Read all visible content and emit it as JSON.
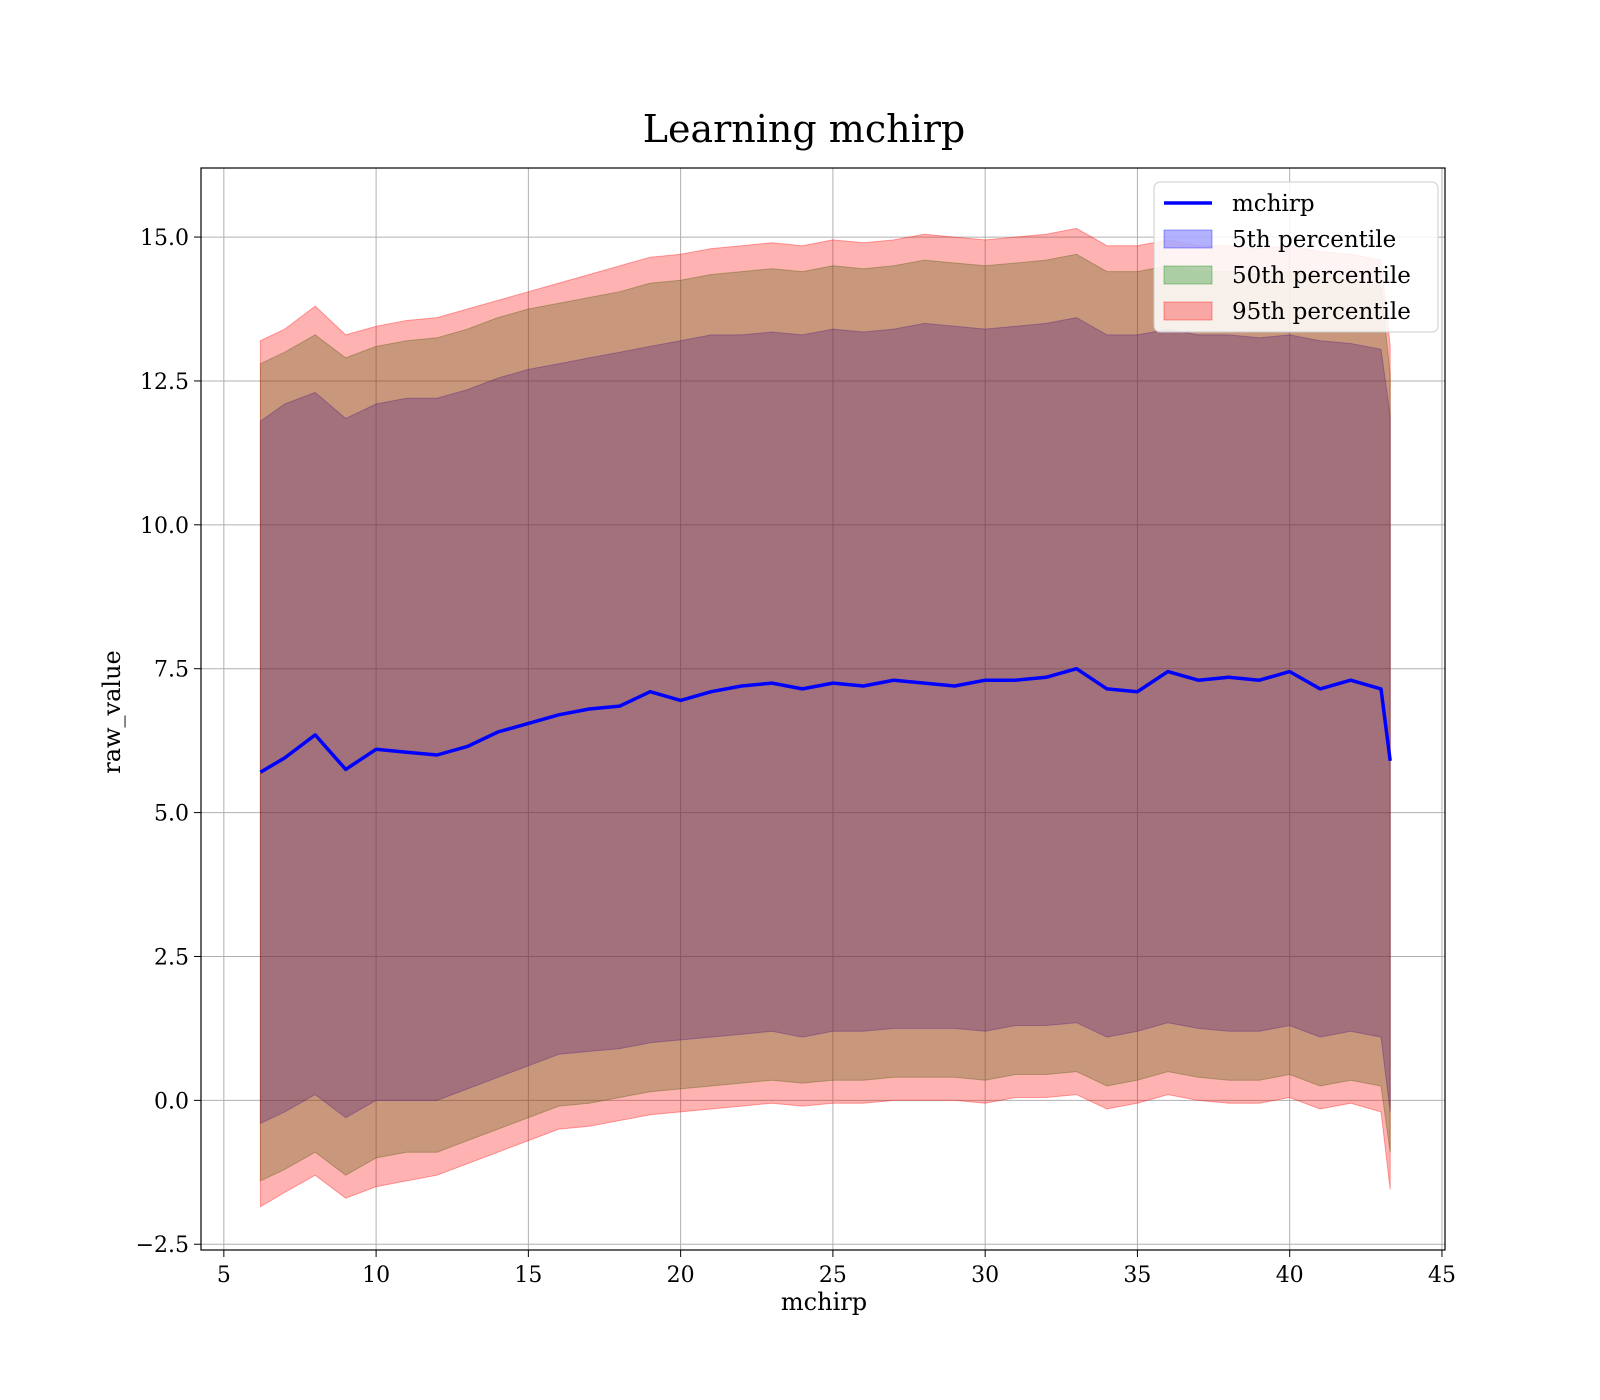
{
  "chart_data": {
    "type": "line",
    "title": "Learning mchirp",
    "xlabel": "mchirp",
    "ylabel": "raw_value",
    "xlim": [
      4.25,
      45.1
    ],
    "ylim": [
      -2.6,
      16.2
    ],
    "xticks": [
      5,
      10,
      15,
      20,
      25,
      30,
      35,
      40,
      45
    ],
    "yticks": [
      -2.5,
      0.0,
      2.5,
      5.0,
      7.5,
      10.0,
      12.5,
      15.0
    ],
    "xtick_labels": [
      "5",
      "10",
      "15",
      "20",
      "25",
      "30",
      "35",
      "40",
      "45"
    ],
    "ytick_labels": [
      "−2.5",
      "0.0",
      "2.5",
      "5.0",
      "7.5",
      "10.0",
      "12.5",
      "15.0"
    ],
    "grid": true,
    "legend_position": "top-right",
    "x": [
      6.2,
      7.0,
      8.0,
      9.0,
      10.0,
      11.0,
      12.0,
      13.0,
      14.0,
      15.0,
      16.0,
      17.0,
      18.0,
      19.0,
      20.0,
      21.0,
      22.0,
      23.0,
      24.0,
      25.0,
      26.0,
      27.0,
      28.0,
      29.0,
      30.0,
      31.0,
      32.0,
      33.0,
      34.0,
      35.0,
      36.0,
      37.0,
      38.0,
      39.0,
      40.0,
      41.0,
      42.0,
      43.0,
      43.3
    ],
    "series": [
      {
        "name": "mchirp",
        "kind": "line",
        "color": "#0000ff",
        "values": [
          5.7,
          5.95,
          6.35,
          5.75,
          6.1,
          6.05,
          6.0,
          6.15,
          6.4,
          6.55,
          6.7,
          6.8,
          6.85,
          7.1,
          6.95,
          7.1,
          7.2,
          7.25,
          7.15,
          7.25,
          7.2,
          7.3,
          7.25,
          7.2,
          7.3,
          7.3,
          7.35,
          7.5,
          7.15,
          7.1,
          7.45,
          7.3,
          7.35,
          7.3,
          7.45,
          7.15,
          7.3,
          7.15,
          5.9
        ]
      },
      {
        "name": "5th percentile",
        "kind": "band",
        "color": "#0000ff",
        "lower": [
          -0.4,
          -0.2,
          0.1,
          -0.3,
          0.0,
          0.0,
          0.0,
          0.2,
          0.4,
          0.6,
          0.8,
          0.85,
          0.9,
          1.0,
          1.05,
          1.1,
          1.15,
          1.2,
          1.1,
          1.2,
          1.2,
          1.25,
          1.25,
          1.25,
          1.2,
          1.3,
          1.3,
          1.35,
          1.1,
          1.2,
          1.35,
          1.25,
          1.2,
          1.2,
          1.3,
          1.1,
          1.2,
          1.1,
          -0.2
        ],
        "upper": [
          11.8,
          12.1,
          12.3,
          11.85,
          12.1,
          12.2,
          12.2,
          12.35,
          12.55,
          12.7,
          12.8,
          12.9,
          13.0,
          13.1,
          13.2,
          13.3,
          13.3,
          13.35,
          13.3,
          13.4,
          13.35,
          13.4,
          13.5,
          13.45,
          13.4,
          13.45,
          13.5,
          13.6,
          13.3,
          13.3,
          13.4,
          13.3,
          13.3,
          13.25,
          13.3,
          13.2,
          13.15,
          13.05,
          11.9
        ]
      },
      {
        "name": "50th percentile",
        "kind": "band",
        "color": "#008000",
        "lower": [
          -1.4,
          -1.2,
          -0.9,
          -1.3,
          -1.0,
          -0.9,
          -0.9,
          -0.7,
          -0.5,
          -0.3,
          -0.1,
          -0.05,
          0.05,
          0.15,
          0.2,
          0.25,
          0.3,
          0.35,
          0.3,
          0.35,
          0.35,
          0.4,
          0.4,
          0.4,
          0.35,
          0.45,
          0.45,
          0.5,
          0.25,
          0.35,
          0.5,
          0.4,
          0.35,
          0.35,
          0.45,
          0.25,
          0.35,
          0.25,
          -0.9
        ],
        "upper": [
          12.8,
          13.0,
          13.3,
          12.9,
          13.1,
          13.2,
          13.25,
          13.4,
          13.6,
          13.75,
          13.85,
          13.95,
          14.05,
          14.2,
          14.25,
          14.35,
          14.4,
          14.45,
          14.4,
          14.5,
          14.45,
          14.5,
          14.6,
          14.55,
          14.5,
          14.55,
          14.6,
          14.7,
          14.4,
          14.4,
          14.5,
          14.4,
          14.4,
          14.35,
          14.4,
          14.3,
          14.25,
          14.15,
          12.6
        ]
      },
      {
        "name": "95th percentile",
        "kind": "band",
        "color": "#ff0000",
        "lower": [
          -1.85,
          -1.6,
          -1.3,
          -1.7,
          -1.5,
          -1.4,
          -1.3,
          -1.1,
          -0.9,
          -0.7,
          -0.5,
          -0.45,
          -0.35,
          -0.25,
          -0.2,
          -0.15,
          -0.1,
          -0.05,
          -0.1,
          -0.05,
          -0.05,
          0.0,
          0.0,
          0.0,
          -0.05,
          0.05,
          0.05,
          0.1,
          -0.15,
          -0.05,
          0.1,
          0.0,
          -0.05,
          -0.05,
          0.05,
          -0.15,
          -0.05,
          -0.2,
          -1.55
        ],
        "upper": [
          13.2,
          13.4,
          13.8,
          13.3,
          13.45,
          13.55,
          13.6,
          13.75,
          13.9,
          14.05,
          14.2,
          14.35,
          14.5,
          14.65,
          14.7,
          14.8,
          14.85,
          14.9,
          14.85,
          14.95,
          14.9,
          14.95,
          15.05,
          15.0,
          14.95,
          15.0,
          15.05,
          15.15,
          14.85,
          14.85,
          14.95,
          14.85,
          14.85,
          14.8,
          14.85,
          14.75,
          14.7,
          14.6,
          13.1
        ]
      }
    ]
  }
}
